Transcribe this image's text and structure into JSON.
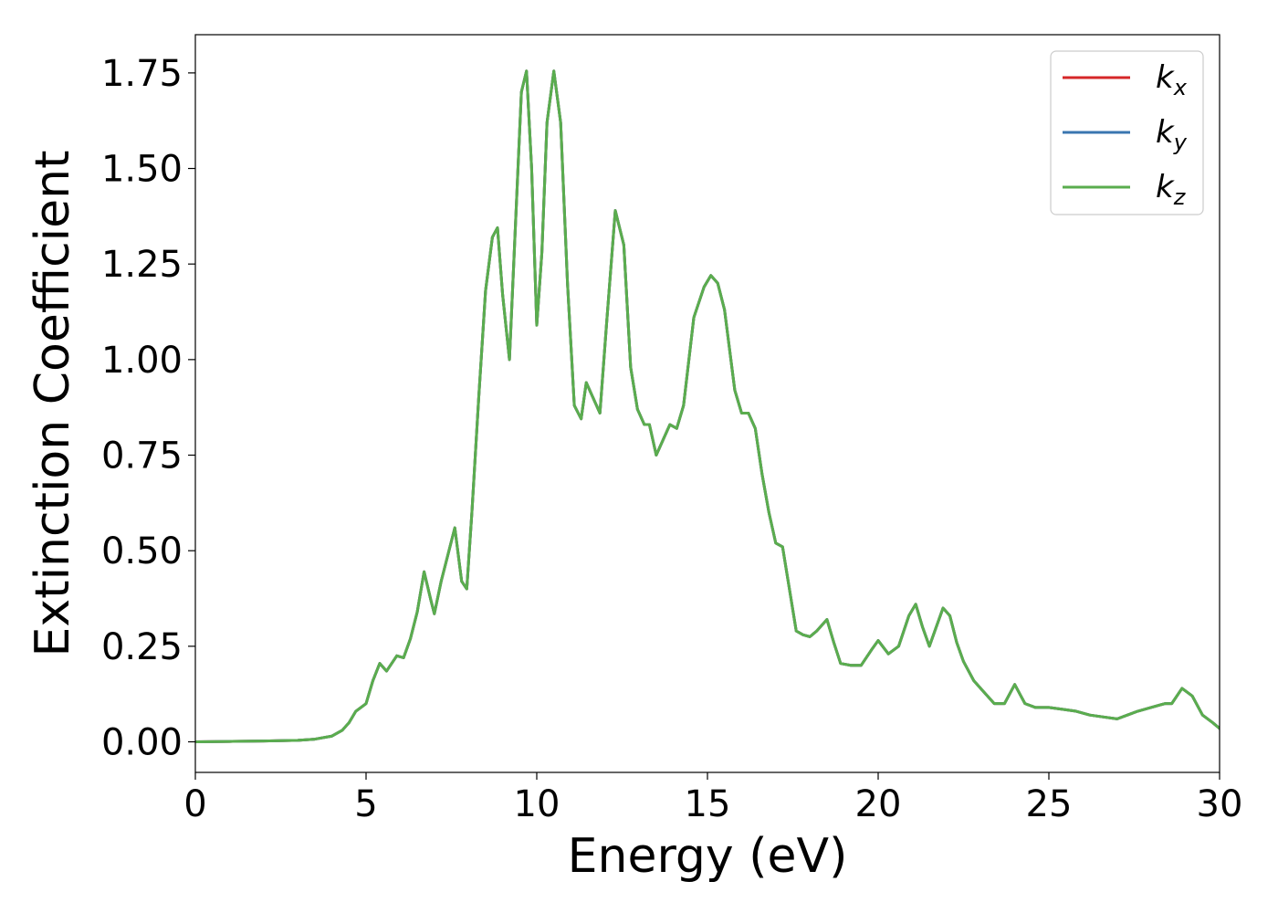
{
  "chart_data": {
    "type": "line",
    "title": "",
    "xlabel": "Energy (eV)",
    "ylabel": "Extinction Coefficient",
    "xlim": [
      0,
      30
    ],
    "ylim": [
      -0.08,
      1.85
    ],
    "xticks": [
      0,
      5,
      10,
      15,
      20,
      25,
      30
    ],
    "xtick_labels": [
      "0",
      "5",
      "10",
      "15",
      "20",
      "25",
      "30"
    ],
    "yticks": [
      0.0,
      0.25,
      0.5,
      0.75,
      1.0,
      1.25,
      1.5,
      1.75
    ],
    "ytick_labels": [
      "0.00",
      "0.25",
      "0.50",
      "0.75",
      "1.00",
      "1.25",
      "1.50",
      "1.75"
    ],
    "grid": false,
    "legend_position": "top-right",
    "series": [
      {
        "name": "k_x",
        "label_main": "k",
        "label_sub": "x",
        "color": "#d62728",
        "x": [
          0,
          1,
          2,
          3,
          3.5,
          4,
          4.3,
          4.5,
          4.7,
          5,
          5.2,
          5.4,
          5.6,
          5.9,
          6.1,
          6.3,
          6.5,
          6.7,
          6.9,
          7,
          7.2,
          7.4,
          7.6,
          7.8,
          7.95,
          8.1,
          8.3,
          8.5,
          8.7,
          8.85,
          9,
          9.2,
          9.4,
          9.55,
          9.7,
          9.85,
          10,
          10.15,
          10.3,
          10.5,
          10.7,
          10.9,
          11.1,
          11.3,
          11.45,
          11.65,
          11.85,
          12.05,
          12.3,
          12.55,
          12.75,
          12.95,
          13.15,
          13.3,
          13.5,
          13.7,
          13.9,
          14.1,
          14.3,
          14.6,
          14.9,
          15.1,
          15.3,
          15.5,
          15.8,
          16,
          16.2,
          16.4,
          16.6,
          16.8,
          17,
          17.2,
          17.4,
          17.6,
          17.8,
          18,
          18.2,
          18.5,
          18.7,
          18.9,
          19.2,
          19.5,
          19.8,
          20,
          20.3,
          20.6,
          20.9,
          21.1,
          21.3,
          21.5,
          21.7,
          21.9,
          22.1,
          22.3,
          22.5,
          22.8,
          23.1,
          23.4,
          23.7,
          24,
          24.3,
          24.6,
          25,
          25.4,
          25.8,
          26.2,
          26.6,
          27,
          27.3,
          27.6,
          28,
          28.4,
          28.6,
          28.9,
          29.2,
          29.5,
          29.8,
          30
        ],
        "y": [
          0,
          0.001,
          0.002,
          0.004,
          0.007,
          0.015,
          0.03,
          0.05,
          0.08,
          0.1,
          0.16,
          0.205,
          0.185,
          0.225,
          0.22,
          0.27,
          0.34,
          0.445,
          0.37,
          0.335,
          0.42,
          0.49,
          0.56,
          0.42,
          0.4,
          0.6,
          0.9,
          1.18,
          1.32,
          1.345,
          1.17,
          1.0,
          1.4,
          1.7,
          1.755,
          1.5,
          1.09,
          1.28,
          1.62,
          1.755,
          1.62,
          1.2,
          0.88,
          0.845,
          0.94,
          0.9,
          0.86,
          1.1,
          1.39,
          1.3,
          0.98,
          0.87,
          0.83,
          0.83,
          0.75,
          0.79,
          0.83,
          0.82,
          0.88,
          1.11,
          1.19,
          1.22,
          1.2,
          1.13,
          0.92,
          0.86,
          0.86,
          0.82,
          0.7,
          0.6,
          0.52,
          0.51,
          0.4,
          0.29,
          0.28,
          0.275,
          0.29,
          0.32,
          0.26,
          0.205,
          0.2,
          0.2,
          0.24,
          0.265,
          0.23,
          0.25,
          0.33,
          0.36,
          0.3,
          0.25,
          0.3,
          0.35,
          0.33,
          0.26,
          0.21,
          0.16,
          0.13,
          0.1,
          0.1,
          0.15,
          0.1,
          0.09,
          0.09,
          0.085,
          0.08,
          0.07,
          0.065,
          0.06,
          0.07,
          0.08,
          0.09,
          0.1,
          0.1,
          0.14,
          0.12,
          0.07,
          0.05,
          0.035
        ]
      },
      {
        "name": "k_y",
        "label_main": "k",
        "label_sub": "y",
        "color": "#3a76b0",
        "x": [
          0,
          1,
          2,
          3,
          3.5,
          4,
          4.3,
          4.5,
          4.7,
          5,
          5.2,
          5.4,
          5.6,
          5.9,
          6.1,
          6.3,
          6.5,
          6.7,
          6.9,
          7,
          7.2,
          7.4,
          7.6,
          7.8,
          7.95,
          8.1,
          8.3,
          8.5,
          8.7,
          8.85,
          9,
          9.2,
          9.4,
          9.55,
          9.7,
          9.85,
          10,
          10.15,
          10.3,
          10.5,
          10.7,
          10.9,
          11.1,
          11.3,
          11.45,
          11.65,
          11.85,
          12.05,
          12.3,
          12.55,
          12.75,
          12.95,
          13.15,
          13.3,
          13.5,
          13.7,
          13.9,
          14.1,
          14.3,
          14.6,
          14.9,
          15.1,
          15.3,
          15.5,
          15.8,
          16,
          16.2,
          16.4,
          16.6,
          16.8,
          17,
          17.2,
          17.4,
          17.6,
          17.8,
          18,
          18.2,
          18.5,
          18.7,
          18.9,
          19.2,
          19.5,
          19.8,
          20,
          20.3,
          20.6,
          20.9,
          21.1,
          21.3,
          21.5,
          21.7,
          21.9,
          22.1,
          22.3,
          22.5,
          22.8,
          23.1,
          23.4,
          23.7,
          24,
          24.3,
          24.6,
          25,
          25.4,
          25.8,
          26.2,
          26.6,
          27,
          27.3,
          27.6,
          28,
          28.4,
          28.6,
          28.9,
          29.2,
          29.5,
          29.8,
          30
        ],
        "y": [
          0,
          0.001,
          0.002,
          0.004,
          0.007,
          0.015,
          0.03,
          0.05,
          0.08,
          0.1,
          0.16,
          0.205,
          0.185,
          0.225,
          0.22,
          0.27,
          0.34,
          0.445,
          0.37,
          0.335,
          0.42,
          0.49,
          0.56,
          0.42,
          0.4,
          0.6,
          0.9,
          1.18,
          1.32,
          1.345,
          1.17,
          1.0,
          1.4,
          1.7,
          1.755,
          1.5,
          1.09,
          1.28,
          1.62,
          1.755,
          1.62,
          1.2,
          0.88,
          0.845,
          0.94,
          0.9,
          0.86,
          1.1,
          1.39,
          1.3,
          0.98,
          0.87,
          0.83,
          0.83,
          0.75,
          0.79,
          0.83,
          0.82,
          0.88,
          1.11,
          1.19,
          1.22,
          1.2,
          1.13,
          0.92,
          0.86,
          0.86,
          0.82,
          0.7,
          0.6,
          0.52,
          0.51,
          0.4,
          0.29,
          0.28,
          0.275,
          0.29,
          0.32,
          0.26,
          0.205,
          0.2,
          0.2,
          0.24,
          0.265,
          0.23,
          0.25,
          0.33,
          0.36,
          0.3,
          0.25,
          0.3,
          0.35,
          0.33,
          0.26,
          0.21,
          0.16,
          0.13,
          0.1,
          0.1,
          0.15,
          0.1,
          0.09,
          0.09,
          0.085,
          0.08,
          0.07,
          0.065,
          0.06,
          0.07,
          0.08,
          0.09,
          0.1,
          0.1,
          0.14,
          0.12,
          0.07,
          0.05,
          0.035
        ]
      },
      {
        "name": "k_z",
        "label_main": "k",
        "label_sub": "z",
        "color": "#5aad4e",
        "x": [
          0,
          1,
          2,
          3,
          3.5,
          4,
          4.3,
          4.5,
          4.7,
          5,
          5.2,
          5.4,
          5.6,
          5.9,
          6.1,
          6.3,
          6.5,
          6.7,
          6.9,
          7,
          7.2,
          7.4,
          7.6,
          7.8,
          7.95,
          8.1,
          8.3,
          8.5,
          8.7,
          8.85,
          9,
          9.2,
          9.4,
          9.55,
          9.7,
          9.85,
          10,
          10.15,
          10.3,
          10.5,
          10.7,
          10.9,
          11.1,
          11.3,
          11.45,
          11.65,
          11.85,
          12.05,
          12.3,
          12.55,
          12.75,
          12.95,
          13.15,
          13.3,
          13.5,
          13.7,
          13.9,
          14.1,
          14.3,
          14.6,
          14.9,
          15.1,
          15.3,
          15.5,
          15.8,
          16,
          16.2,
          16.4,
          16.6,
          16.8,
          17,
          17.2,
          17.4,
          17.6,
          17.8,
          18,
          18.2,
          18.5,
          18.7,
          18.9,
          19.2,
          19.5,
          19.8,
          20,
          20.3,
          20.6,
          20.9,
          21.1,
          21.3,
          21.5,
          21.7,
          21.9,
          22.1,
          22.3,
          22.5,
          22.8,
          23.1,
          23.4,
          23.7,
          24,
          24.3,
          24.6,
          25,
          25.4,
          25.8,
          26.2,
          26.6,
          27,
          27.3,
          27.6,
          28,
          28.4,
          28.6,
          28.9,
          29.2,
          29.5,
          29.8,
          30
        ],
        "y": [
          0,
          0.001,
          0.002,
          0.004,
          0.007,
          0.015,
          0.03,
          0.05,
          0.08,
          0.1,
          0.16,
          0.205,
          0.185,
          0.225,
          0.22,
          0.27,
          0.34,
          0.445,
          0.37,
          0.335,
          0.42,
          0.49,
          0.56,
          0.42,
          0.4,
          0.6,
          0.9,
          1.18,
          1.32,
          1.345,
          1.17,
          1.0,
          1.4,
          1.7,
          1.755,
          1.5,
          1.09,
          1.28,
          1.62,
          1.755,
          1.62,
          1.2,
          0.88,
          0.845,
          0.94,
          0.9,
          0.86,
          1.1,
          1.39,
          1.3,
          0.98,
          0.87,
          0.83,
          0.83,
          0.75,
          0.79,
          0.83,
          0.82,
          0.88,
          1.11,
          1.19,
          1.22,
          1.2,
          1.13,
          0.92,
          0.86,
          0.86,
          0.82,
          0.7,
          0.6,
          0.52,
          0.51,
          0.4,
          0.29,
          0.28,
          0.275,
          0.29,
          0.32,
          0.26,
          0.205,
          0.2,
          0.2,
          0.24,
          0.265,
          0.23,
          0.25,
          0.33,
          0.36,
          0.3,
          0.25,
          0.3,
          0.35,
          0.33,
          0.26,
          0.21,
          0.16,
          0.13,
          0.1,
          0.1,
          0.15,
          0.1,
          0.09,
          0.09,
          0.085,
          0.08,
          0.07,
          0.065,
          0.06,
          0.07,
          0.08,
          0.09,
          0.1,
          0.1,
          0.14,
          0.12,
          0.07,
          0.05,
          0.035
        ]
      }
    ]
  }
}
